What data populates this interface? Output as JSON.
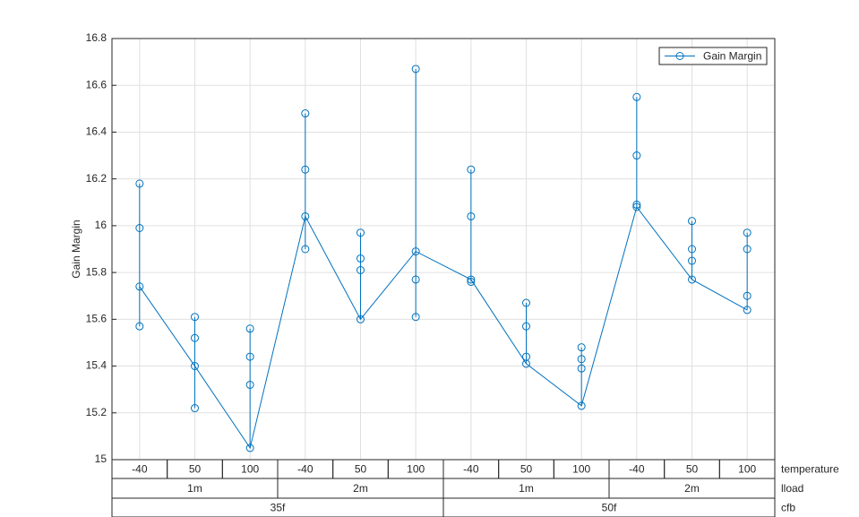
{
  "chart_data": {
    "type": "line",
    "ylabel": "Gain Margin",
    "categories": [
      "-40",
      "50",
      "100",
      "-40",
      "50",
      "100",
      "-40",
      "50",
      "100",
      "-40",
      "50",
      "100"
    ],
    "x_level_names": [
      "temperature",
      "lload",
      "cfb"
    ],
    "x_groups": [
      [
        "1m",
        "2m",
        "1m",
        "2m"
      ],
      [
        "35f",
        "50f"
      ]
    ],
    "series": [
      {
        "name": "Gain Margin",
        "color": "#0072bd",
        "values": [
          [
            15.74,
            15.57,
            15.99,
            16.18
          ],
          [
            15.4,
            15.22,
            15.52,
            15.61
          ],
          [
            15.05,
            15.32,
            15.44,
            15.56
          ],
          [
            16.04,
            15.9,
            16.24,
            16.48
          ],
          [
            15.6,
            15.81,
            15.86,
            15.97
          ],
          [
            15.89,
            15.61,
            15.77,
            16.67
          ],
          [
            15.77,
            15.76,
            16.04,
            16.24
          ],
          [
            15.41,
            15.44,
            15.57,
            15.67
          ],
          [
            15.23,
            15.39,
            15.43,
            15.48
          ],
          [
            16.08,
            16.09,
            16.3,
            16.55
          ],
          [
            15.77,
            15.85,
            15.9,
            16.02
          ],
          [
            15.64,
            15.7,
            15.9,
            15.97
          ]
        ]
      }
    ],
    "ylim": [
      15,
      16.8
    ],
    "yticks": [
      15,
      15.2,
      15.4,
      15.6,
      15.8,
      16,
      16.2,
      16.4,
      16.6,
      16.8
    ],
    "grid": true,
    "legend": "top-right"
  }
}
